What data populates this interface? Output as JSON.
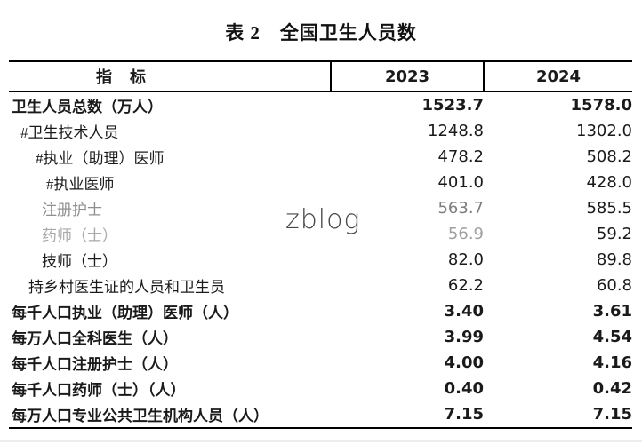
{
  "title": "表 2　全国卫生人员数",
  "watermark": "zblog",
  "table": {
    "headers": {
      "indicator": "指　标",
      "y2023": "2023",
      "y2024": "2024"
    },
    "rows": [
      {
        "label": "卫生人员总数（万人）",
        "v2023": "1523.7",
        "v2024": "1578.0"
      },
      {
        "label": "#卫生技术人员",
        "v2023": "1248.8",
        "v2024": "1302.0"
      },
      {
        "label": "#执业（助理）医师",
        "v2023": "478.2",
        "v2024": "508.2"
      },
      {
        "label": "#执业医师",
        "v2023": "401.0",
        "v2024": "428.0"
      },
      {
        "label": "注册护士",
        "v2023": "563.7",
        "v2024": "585.5"
      },
      {
        "label": "药师（士）",
        "v2023": "56.9",
        "v2024": "59.2"
      },
      {
        "label": "技师（士）",
        "v2023": "82.0",
        "v2024": "89.8"
      },
      {
        "label": "持乡村医生证的人员和卫生员",
        "v2023": "62.2",
        "v2024": "60.8"
      },
      {
        "label": "每千人口执业（助理）医师（人）",
        "v2023": "3.40",
        "v2024": "3.61"
      },
      {
        "label": "每万人口全科医生（人）",
        "v2023": "3.99",
        "v2024": "4.54"
      },
      {
        "label": "每千人口注册护士（人）",
        "v2023": "4.00",
        "v2024": "4.16"
      },
      {
        "label": "每千人口药师（士）（人）",
        "v2023": "0.40",
        "v2024": "0.42"
      },
      {
        "label": "每万人口专业公共卫生机构人员（人）",
        "v2023": "7.15",
        "v2024": "7.15"
      }
    ]
  },
  "colors": {
    "text": "#1a1a1a",
    "muted": "#9a9a9a",
    "border": "#000000",
    "watermark": "#474747",
    "background": "#ffffff"
  }
}
